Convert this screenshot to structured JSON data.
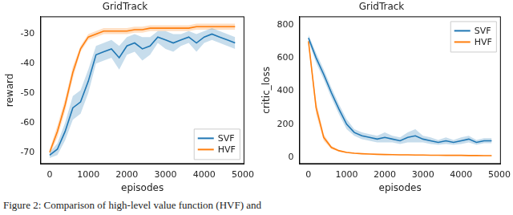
{
  "chart_data": [
    {
      "type": "line",
      "title": "GridTrack",
      "x_label": "episodes",
      "y_label": "reward",
      "xlim": [
        -240,
        5040
      ],
      "xticks": [
        0,
        1000,
        2000,
        3000,
        4000,
        5000
      ],
      "ylim": [
        -74,
        -24
      ],
      "yticks": [
        -70,
        -60,
        -50,
        -40,
        -30
      ],
      "grid": false,
      "legend": "lower right",
      "x": [
        0,
        200,
        400,
        600,
        800,
        1000,
        1200,
        1400,
        1600,
        1800,
        2000,
        2200,
        2400,
        2600,
        2800,
        3000,
        3200,
        3400,
        3600,
        3800,
        4000,
        4200,
        4400,
        4600,
        4800
      ],
      "series": [
        {
          "name": "SVF",
          "color": "#1f77b4",
          "values": [
            -71,
            -69,
            -63,
            -55,
            -53,
            -46,
            -37,
            -36,
            -35,
            -38,
            -34,
            -33,
            -35,
            -34,
            -31,
            -32,
            -33,
            -32,
            -31,
            -33,
            -31,
            -30,
            -31,
            -32,
            -33
          ],
          "error": [
            1,
            2,
            3,
            4,
            4,
            4,
            3,
            3,
            3,
            4,
            3,
            3,
            4,
            3,
            2,
            3,
            3,
            2,
            2,
            3,
            2,
            2,
            2,
            2,
            2
          ]
        },
        {
          "name": "HVF",
          "color": "#ff7f0e",
          "values": [
            -70,
            -63,
            -54,
            -43,
            -35,
            -31,
            -30,
            -29,
            -29,
            -29,
            -29,
            -28.5,
            -28.5,
            -28,
            -28,
            -28,
            -28,
            -28,
            -28,
            -27.5,
            -27.5,
            -27.5,
            -27.5,
            -27.5,
            -27.5
          ],
          "error": [
            1,
            2,
            2,
            2,
            1,
            1,
            1,
            1,
            1,
            1,
            1,
            1,
            1,
            1,
            1,
            1,
            1,
            1,
            1,
            1,
            1,
            1,
            1,
            1,
            1
          ]
        }
      ]
    },
    {
      "type": "line",
      "title": "GridTrack",
      "x_label": "episodes",
      "y_label": "critic_loss",
      "xlim": [
        -240,
        5040
      ],
      "xticks": [
        0,
        1000,
        2000,
        3000,
        4000,
        5000
      ],
      "ylim": [
        -40,
        850
      ],
      "yticks": [
        0,
        200,
        400,
        600,
        800
      ],
      "grid": false,
      "legend": "upper right",
      "x": [
        0,
        200,
        400,
        600,
        800,
        1000,
        1200,
        1400,
        1600,
        1800,
        2000,
        2200,
        2400,
        2600,
        2800,
        3000,
        3200,
        3400,
        3600,
        3800,
        4000,
        4200,
        4400,
        4600,
        4800
      ],
      "series": [
        {
          "name": "SVF",
          "color": "#1f77b4",
          "values": [
            720,
            600,
            500,
            390,
            290,
            200,
            150,
            130,
            120,
            110,
            120,
            110,
            100,
            120,
            130,
            110,
            100,
            90,
            100,
            90,
            100,
            110,
            90,
            100,
            100
          ],
          "error": [
            20,
            30,
            30,
            30,
            30,
            30,
            20,
            20,
            20,
            20,
            30,
            20,
            20,
            30,
            40,
            20,
            20,
            15,
            20,
            15,
            20,
            20,
            15,
            15,
            15
          ]
        },
        {
          "name": "HVF",
          "color": "#ff7f0e",
          "values": [
            700,
            300,
            120,
            60,
            40,
            30,
            25,
            22,
            20,
            18,
            17,
            16,
            15,
            15,
            14,
            14,
            13,
            13,
            12,
            12,
            12,
            11,
            11,
            10,
            10
          ],
          "error": [
            20,
            40,
            20,
            10,
            5,
            4,
            3,
            3,
            3,
            2,
            2,
            2,
            2,
            2,
            2,
            2,
            2,
            2,
            2,
            2,
            2,
            2,
            2,
            2,
            2
          ]
        }
      ]
    }
  ],
  "caption": "Figure 2: Comparison of high-level value function (HVF) and"
}
